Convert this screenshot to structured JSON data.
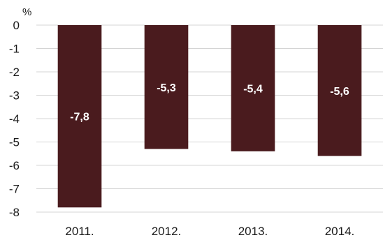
{
  "chart_data": {
    "type": "bar",
    "unit_label": "%",
    "categories": [
      "2011.",
      "2012.",
      "2013.",
      "2014."
    ],
    "values": [
      -7.8,
      -5.3,
      -5.4,
      -5.6
    ],
    "data_labels": [
      "-7,8",
      "-5,3",
      "-5,4",
      "-5,6"
    ],
    "yticks": [
      0,
      -1,
      -2,
      -3,
      -4,
      -5,
      -6,
      -7,
      -8
    ],
    "ytick_labels": [
      "0",
      "-1",
      "-2",
      "-3",
      "-4",
      "-5",
      "-6",
      "-7",
      "-8"
    ],
    "ylim": [
      -8,
      0
    ],
    "grid": true,
    "bar_color": "#4a1b1e",
    "title": "",
    "xlabel": "",
    "ylabel": ""
  }
}
